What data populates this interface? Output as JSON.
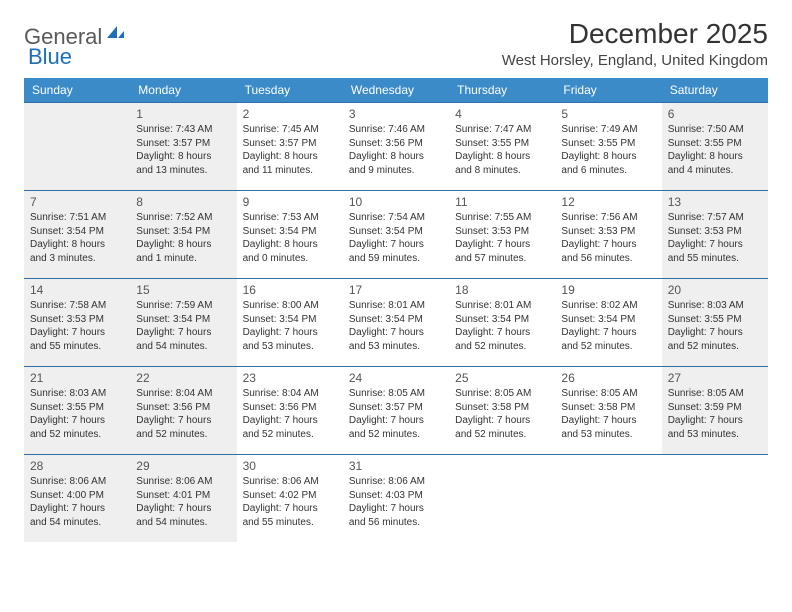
{
  "logo": {
    "text1": "General",
    "text2": "Blue"
  },
  "title": "December 2025",
  "location": "West Horsley, England, United Kingdom",
  "colors": {
    "header_bg": "#3b8bc8",
    "header_text": "#ffffff",
    "cell_border": "#2f6fa8",
    "shaded_bg": "#efefef",
    "text": "#333333"
  },
  "day_headers": [
    "Sunday",
    "Monday",
    "Tuesday",
    "Wednesday",
    "Thursday",
    "Friday",
    "Saturday"
  ],
  "weeks": [
    [
      {
        "blank": true,
        "shaded": true
      },
      {
        "num": "1",
        "shaded": true,
        "sunrise": "Sunrise: 7:43 AM",
        "sunset": "Sunset: 3:57 PM",
        "daylight": "Daylight: 8 hours and 13 minutes."
      },
      {
        "num": "2",
        "sunrise": "Sunrise: 7:45 AM",
        "sunset": "Sunset: 3:57 PM",
        "daylight": "Daylight: 8 hours and 11 minutes."
      },
      {
        "num": "3",
        "sunrise": "Sunrise: 7:46 AM",
        "sunset": "Sunset: 3:56 PM",
        "daylight": "Daylight: 8 hours and 9 minutes."
      },
      {
        "num": "4",
        "sunrise": "Sunrise: 7:47 AM",
        "sunset": "Sunset: 3:55 PM",
        "daylight": "Daylight: 8 hours and 8 minutes."
      },
      {
        "num": "5",
        "sunrise": "Sunrise: 7:49 AM",
        "sunset": "Sunset: 3:55 PM",
        "daylight": "Daylight: 8 hours and 6 minutes."
      },
      {
        "num": "6",
        "shaded": true,
        "sunrise": "Sunrise: 7:50 AM",
        "sunset": "Sunset: 3:55 PM",
        "daylight": "Daylight: 8 hours and 4 minutes."
      }
    ],
    [
      {
        "num": "7",
        "shaded": true,
        "sunrise": "Sunrise: 7:51 AM",
        "sunset": "Sunset: 3:54 PM",
        "daylight": "Daylight: 8 hours and 3 minutes."
      },
      {
        "num": "8",
        "shaded": true,
        "sunrise": "Sunrise: 7:52 AM",
        "sunset": "Sunset: 3:54 PM",
        "daylight": "Daylight: 8 hours and 1 minute."
      },
      {
        "num": "9",
        "sunrise": "Sunrise: 7:53 AM",
        "sunset": "Sunset: 3:54 PM",
        "daylight": "Daylight: 8 hours and 0 minutes."
      },
      {
        "num": "10",
        "sunrise": "Sunrise: 7:54 AM",
        "sunset": "Sunset: 3:54 PM",
        "daylight": "Daylight: 7 hours and 59 minutes."
      },
      {
        "num": "11",
        "sunrise": "Sunrise: 7:55 AM",
        "sunset": "Sunset: 3:53 PM",
        "daylight": "Daylight: 7 hours and 57 minutes."
      },
      {
        "num": "12",
        "sunrise": "Sunrise: 7:56 AM",
        "sunset": "Sunset: 3:53 PM",
        "daylight": "Daylight: 7 hours and 56 minutes."
      },
      {
        "num": "13",
        "shaded": true,
        "sunrise": "Sunrise: 7:57 AM",
        "sunset": "Sunset: 3:53 PM",
        "daylight": "Daylight: 7 hours and 55 minutes."
      }
    ],
    [
      {
        "num": "14",
        "shaded": true,
        "sunrise": "Sunrise: 7:58 AM",
        "sunset": "Sunset: 3:53 PM",
        "daylight": "Daylight: 7 hours and 55 minutes."
      },
      {
        "num": "15",
        "shaded": true,
        "sunrise": "Sunrise: 7:59 AM",
        "sunset": "Sunset: 3:54 PM",
        "daylight": "Daylight: 7 hours and 54 minutes."
      },
      {
        "num": "16",
        "sunrise": "Sunrise: 8:00 AM",
        "sunset": "Sunset: 3:54 PM",
        "daylight": "Daylight: 7 hours and 53 minutes."
      },
      {
        "num": "17",
        "sunrise": "Sunrise: 8:01 AM",
        "sunset": "Sunset: 3:54 PM",
        "daylight": "Daylight: 7 hours and 53 minutes."
      },
      {
        "num": "18",
        "sunrise": "Sunrise: 8:01 AM",
        "sunset": "Sunset: 3:54 PM",
        "daylight": "Daylight: 7 hours and 52 minutes."
      },
      {
        "num": "19",
        "sunrise": "Sunrise: 8:02 AM",
        "sunset": "Sunset: 3:54 PM",
        "daylight": "Daylight: 7 hours and 52 minutes."
      },
      {
        "num": "20",
        "shaded": true,
        "sunrise": "Sunrise: 8:03 AM",
        "sunset": "Sunset: 3:55 PM",
        "daylight": "Daylight: 7 hours and 52 minutes."
      }
    ],
    [
      {
        "num": "21",
        "shaded": true,
        "sunrise": "Sunrise: 8:03 AM",
        "sunset": "Sunset: 3:55 PM",
        "daylight": "Daylight: 7 hours and 52 minutes."
      },
      {
        "num": "22",
        "shaded": true,
        "sunrise": "Sunrise: 8:04 AM",
        "sunset": "Sunset: 3:56 PM",
        "daylight": "Daylight: 7 hours and 52 minutes."
      },
      {
        "num": "23",
        "sunrise": "Sunrise: 8:04 AM",
        "sunset": "Sunset: 3:56 PM",
        "daylight": "Daylight: 7 hours and 52 minutes."
      },
      {
        "num": "24",
        "sunrise": "Sunrise: 8:05 AM",
        "sunset": "Sunset: 3:57 PM",
        "daylight": "Daylight: 7 hours and 52 minutes."
      },
      {
        "num": "25",
        "sunrise": "Sunrise: 8:05 AM",
        "sunset": "Sunset: 3:58 PM",
        "daylight": "Daylight: 7 hours and 52 minutes."
      },
      {
        "num": "26",
        "sunrise": "Sunrise: 8:05 AM",
        "sunset": "Sunset: 3:58 PM",
        "daylight": "Daylight: 7 hours and 53 minutes."
      },
      {
        "num": "27",
        "shaded": true,
        "sunrise": "Sunrise: 8:05 AM",
        "sunset": "Sunset: 3:59 PM",
        "daylight": "Daylight: 7 hours and 53 minutes."
      }
    ],
    [
      {
        "num": "28",
        "shaded": true,
        "sunrise": "Sunrise: 8:06 AM",
        "sunset": "Sunset: 4:00 PM",
        "daylight": "Daylight: 7 hours and 54 minutes."
      },
      {
        "num": "29",
        "shaded": true,
        "sunrise": "Sunrise: 8:06 AM",
        "sunset": "Sunset: 4:01 PM",
        "daylight": "Daylight: 7 hours and 54 minutes."
      },
      {
        "num": "30",
        "sunrise": "Sunrise: 8:06 AM",
        "sunset": "Sunset: 4:02 PM",
        "daylight": "Daylight: 7 hours and 55 minutes."
      },
      {
        "num": "31",
        "sunrise": "Sunrise: 8:06 AM",
        "sunset": "Sunset: 4:03 PM",
        "daylight": "Daylight: 7 hours and 56 minutes."
      },
      {
        "blank": true
      },
      {
        "blank": true
      },
      {
        "blank": true
      }
    ]
  ]
}
